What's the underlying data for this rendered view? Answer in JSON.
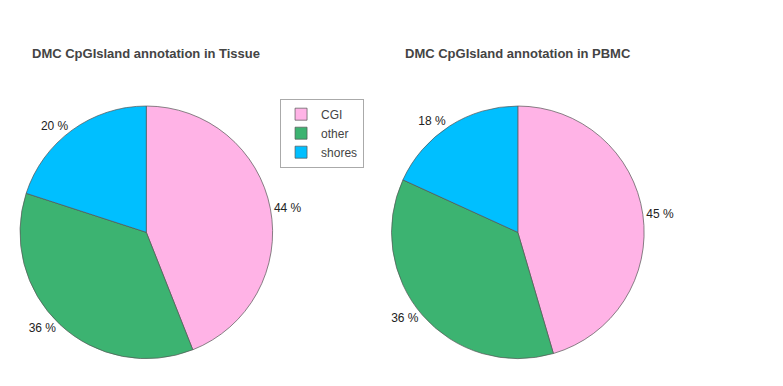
{
  "chart_data": [
    {
      "type": "pie",
      "title": "DMC CpGIsland annotation in Tissue",
      "categories": [
        "CGI",
        "other",
        "shores"
      ],
      "values": [
        44,
        36,
        20
      ],
      "value_labels": [
        "44 %",
        "36 %",
        "20 %"
      ],
      "colors": [
        "#ffb3e6",
        "#3cb371",
        "#00bfff"
      ],
      "data_labels": true,
      "legend": "upper right"
    },
    {
      "type": "pie",
      "title": "DMC CpGIsland annotation in PBMC",
      "categories": [
        "CGI",
        "other",
        "shores"
      ],
      "values": [
        45,
        36,
        18
      ],
      "value_labels": [
        "45 %",
        "36 %",
        "18 %"
      ],
      "colors": [
        "#ffb3e6",
        "#3cb371",
        "#00bfff"
      ],
      "data_labels": true,
      "legend": "upper right"
    }
  ]
}
